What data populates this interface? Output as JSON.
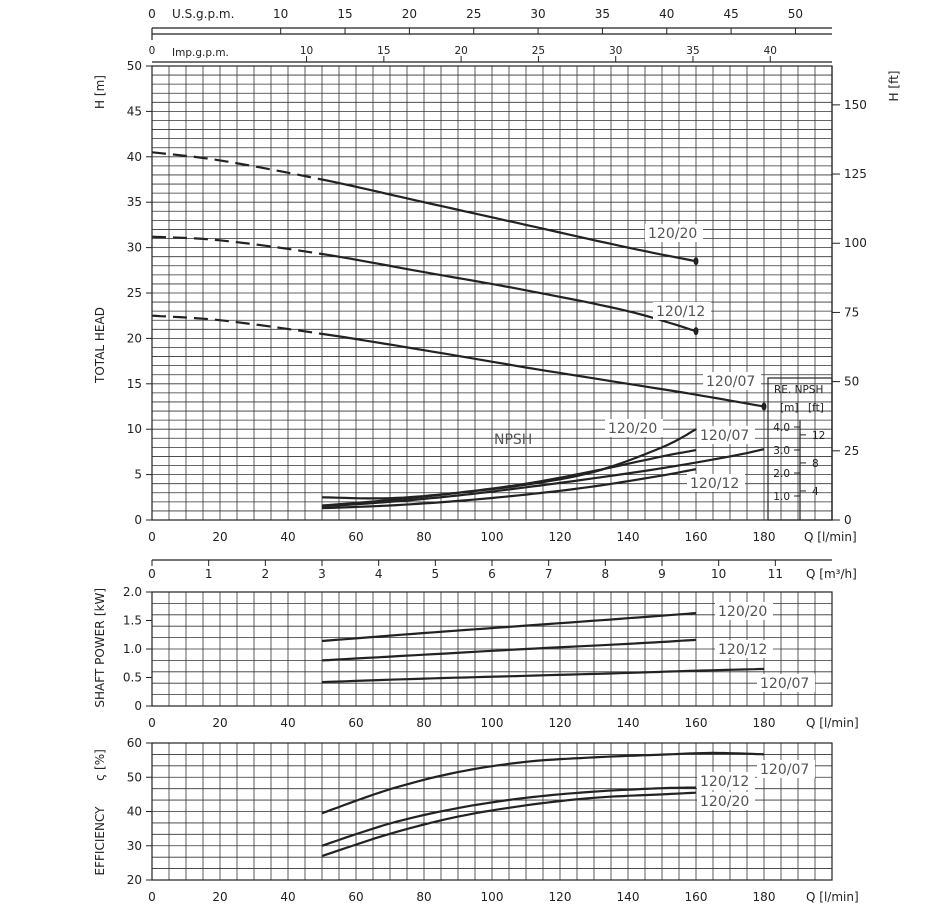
{
  "top_axes": {
    "usgpm": {
      "label": "U.S.g.p.m.",
      "ticks": [
        "0",
        "10",
        "15",
        "20",
        "25",
        "30",
        "35",
        "40",
        "45",
        "50"
      ]
    },
    "impgpm": {
      "label": "Imp.g.p.m.",
      "ticks": [
        "0",
        "10",
        "15",
        "20",
        "25",
        "30",
        "35",
        "40"
      ]
    }
  },
  "head_chart": {
    "ylabel": "TOTAL HEAD",
    "yunit": "H  [m]",
    "yunit_right": "H  [ft]",
    "yticks": [
      "0",
      "5",
      "10",
      "15",
      "20",
      "25",
      "30",
      "35",
      "40",
      "45",
      "50"
    ],
    "yticks_ft": [
      "0",
      "25",
      "50",
      "75",
      "100",
      "125",
      "150"
    ],
    "xticks": [
      "0",
      "20",
      "40",
      "60",
      "80",
      "100",
      "120",
      "140",
      "160",
      "180"
    ],
    "xunit": "Q  [l/min]",
    "m3h_ticks": [
      "0",
      "1",
      "2",
      "3",
      "4",
      "5",
      "6",
      "7",
      "8",
      "9",
      "10",
      "11"
    ],
    "m3h_unit": "Q  [m³/h]",
    "npsh_label": "NPSH",
    "npsh_box": {
      "title": "RE. NPSH",
      "unit_m": "[m]",
      "unit_ft": "[ft]",
      "ticks_m": [
        "1.0",
        "2.0",
        "3.0",
        "4.0"
      ],
      "ticks_ft": [
        "4",
        "8",
        "12"
      ]
    }
  },
  "power_chart": {
    "ylabel": "SHAFT POWER",
    "yunit": "[kW]",
    "yticks": [
      "0",
      "0.5",
      "1.0",
      "1.5",
      "2.0"
    ],
    "xticks": [
      "0",
      "20",
      "40",
      "60",
      "80",
      "100",
      "120",
      "140",
      "160",
      "180"
    ],
    "xunit": "Q  [l/min]"
  },
  "eff_chart": {
    "ylabel": "EFFICIENCY",
    "yunit": "ς  [%]",
    "yticks": [
      "20",
      "30",
      "40",
      "50",
      "60"
    ],
    "xticks": [
      "0",
      "20",
      "40",
      "60",
      "80",
      "100",
      "120",
      "140",
      "160",
      "180"
    ],
    "xunit": "Q  [l/min]"
  },
  "chart_data": [
    {
      "type": "line",
      "title": "",
      "xlabel": "Q [l/min]",
      "ylabel": "TOTAL HEAD H [m]",
      "xlim": [
        0,
        200
      ],
      "ylim": [
        0,
        50
      ],
      "series": [
        {
          "name": "120/20",
          "x": [
            0,
            20,
            50,
            80,
            110,
            140,
            160
          ],
          "y": [
            40.5,
            39.6,
            37.5,
            35.0,
            32.5,
            30.0,
            28.5
          ],
          "extrapolated_until": 50
        },
        {
          "name": "120/12",
          "x": [
            0,
            20,
            50,
            80,
            110,
            140,
            160
          ],
          "y": [
            31.2,
            30.8,
            29.3,
            27.3,
            25.3,
            23.0,
            20.8
          ],
          "extrapolated_until": 50
        },
        {
          "name": "120/07",
          "x": [
            0,
            20,
            50,
            80,
            110,
            140,
            160,
            180
          ],
          "y": [
            22.5,
            22.0,
            20.5,
            18.7,
            16.8,
            15.0,
            13.8,
            12.5
          ],
          "extrapolated_until": 50
        }
      ]
    },
    {
      "type": "line",
      "title": "",
      "xlabel": "Q [l/min]",
      "ylabel": "NPSH [m]",
      "xlim": [
        0,
        200
      ],
      "ylim": [
        0,
        50
      ],
      "series": [
        {
          "name": "120/20",
          "x": [
            50,
            70,
            90,
            110,
            130,
            150,
            160
          ],
          "y": [
            1.6,
            2.2,
            3.0,
            4.0,
            5.4,
            7.0,
            7.7
          ]
        },
        {
          "name": "120/07",
          "x": [
            50,
            70,
            90,
            110,
            130,
            150,
            170,
            180
          ],
          "y": [
            1.5,
            2.0,
            2.7,
            3.6,
            4.6,
            5.7,
            7.0,
            7.8
          ]
        },
        {
          "name": "120/12",
          "x": [
            50,
            70,
            90,
            110,
            130,
            150,
            160
          ],
          "y": [
            1.3,
            1.6,
            2.1,
            2.8,
            3.7,
            4.9,
            5.6
          ]
        },
        {
          "name": "NPSH",
          "x": [
            50,
            70,
            90,
            110,
            130,
            150,
            160
          ],
          "y": [
            2.5,
            2.4,
            3.0,
            3.9,
            5.3,
            8.0,
            10.0
          ]
        }
      ]
    },
    {
      "type": "line",
      "title": "",
      "xlabel": "Q [l/min]",
      "ylabel": "SHAFT POWER [kW]",
      "xlim": [
        0,
        200
      ],
      "ylim": [
        0,
        2.0
      ],
      "series": [
        {
          "name": "120/20",
          "x": [
            50,
            80,
            110,
            140,
            160
          ],
          "y": [
            1.14,
            1.28,
            1.41,
            1.54,
            1.63
          ]
        },
        {
          "name": "120/12",
          "x": [
            50,
            80,
            110,
            140,
            160
          ],
          "y": [
            0.8,
            0.9,
            1.0,
            1.09,
            1.16
          ]
        },
        {
          "name": "120/07",
          "x": [
            50,
            80,
            110,
            140,
            160,
            180
          ],
          "y": [
            0.42,
            0.48,
            0.53,
            0.58,
            0.62,
            0.65
          ]
        }
      ]
    },
    {
      "type": "line",
      "title": "",
      "xlabel": "Q [l/min]",
      "ylabel": "EFFICIENCY [%]",
      "xlim": [
        0,
        200
      ],
      "ylim": [
        20,
        60
      ],
      "series": [
        {
          "name": "120/07",
          "x": [
            50,
            70,
            90,
            110,
            130,
            150,
            165,
            180
          ],
          "y": [
            39.5,
            46.5,
            51.5,
            54.5,
            55.8,
            56.6,
            57.1,
            56.7
          ]
        },
        {
          "name": "120/12",
          "x": [
            50,
            70,
            90,
            110,
            130,
            150,
            160
          ],
          "y": [
            30.0,
            36.5,
            41.0,
            44.0,
            45.8,
            46.8,
            47.0
          ]
        },
        {
          "name": "120/20",
          "x": [
            50,
            70,
            90,
            110,
            130,
            150,
            160
          ],
          "y": [
            27.0,
            33.5,
            38.5,
            41.8,
            44.0,
            45.0,
            45.5
          ]
        }
      ]
    }
  ]
}
